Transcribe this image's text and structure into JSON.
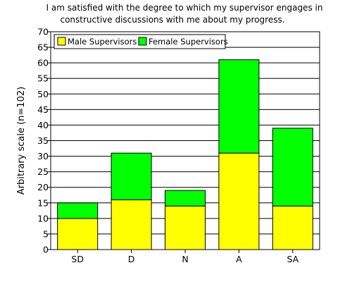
{
  "chart_data": {
    "type": "bar",
    "stacked": true,
    "title": [
      "I am satisfied with the degree to which my supervisor engages in",
      "constructive discussions with me about my progress."
    ],
    "xlabel": "",
    "ylabel": "Arbitrary scale (n=102)",
    "categories": [
      "SD",
      "D",
      "N",
      "A",
      "SA"
    ],
    "series": [
      {
        "name": "Male Supervisors",
        "color": "#ffff00",
        "values": [
          10,
          16,
          14,
          31,
          14
        ]
      },
      {
        "name": "Female Supervisors",
        "color": "#00ff00",
        "values": [
          5,
          15,
          5,
          30,
          25
        ]
      }
    ],
    "ylim": [
      0,
      70
    ],
    "yticks": [
      0,
      5,
      10,
      15,
      20,
      25,
      30,
      35,
      40,
      45,
      50,
      55,
      60,
      65,
      70
    ],
    "grid": true,
    "legend_position": "top-left"
  }
}
